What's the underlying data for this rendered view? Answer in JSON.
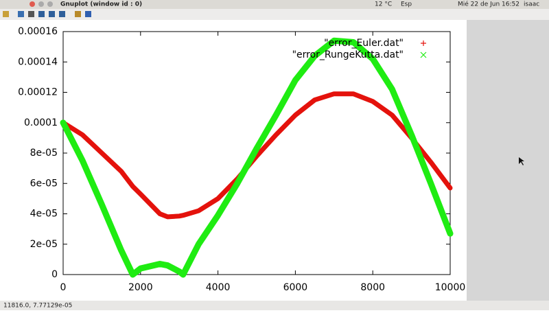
{
  "panel": {
    "window_title": "Gnuplot (window id : 0)",
    "weather": "12 °C",
    "keyboard": "Esp",
    "clock": "Mié 22 de Jun 16:52",
    "user": "isaac"
  },
  "status_bar": {
    "coordinates": "11816.0, 7.77129e-05"
  },
  "chart_data": {
    "type": "line",
    "x": [
      0,
      500,
      1000,
      1500,
      1800,
      2000,
      2500,
      2700,
      3000,
      3100,
      3500,
      4000,
      4500,
      5000,
      5500,
      6000,
      6500,
      7000,
      7500,
      8000,
      8500,
      9000,
      9500,
      10000
    ],
    "series": [
      {
        "name": "\"error_Euler.dat\"",
        "color": "#e4120c",
        "marker": "plus",
        "values": [
          0.0001,
          9.2e-05,
          8e-05,
          6.8e-05,
          5.8e-05,
          5.3e-05,
          4e-05,
          3.8e-05,
          3.85e-05,
          3.9e-05,
          4.2e-05,
          5e-05,
          6.3e-05,
          7.8e-05,
          9.2e-05,
          0.000105,
          0.000115,
          0.000119,
          0.000119,
          0.000114,
          0.000105,
          9e-05,
          7.4e-05,
          5.7e-05
        ]
      },
      {
        "name": "\"error_RungeKutta.dat\"",
        "color": "#1fec12",
        "marker": "cross",
        "values": [
          0.0001,
          7.5e-05,
          4.6e-05,
          1.6e-05,
          0,
          4e-06,
          7e-06,
          6e-06,
          2e-06,
          0,
          2e-05,
          3.9e-05,
          6e-05,
          8.3e-05,
          0.000105,
          0.000128,
          0.000144,
          0.000154,
          0.000153,
          0.000142,
          0.000122,
          9.2e-05,
          6e-05,
          2.7e-05
        ]
      }
    ],
    "xlim": [
      0,
      10000
    ],
    "xticks": [
      0,
      2000,
      4000,
      6000,
      8000,
      10000
    ],
    "ylim": [
      0,
      0.00016
    ],
    "yticks": [
      0,
      {
        "value": 2e-05,
        "label": "2e-05"
      },
      {
        "value": 4e-05,
        "label": "4e-05"
      },
      {
        "value": 6e-05,
        "label": "6e-05"
      },
      {
        "value": 8e-05,
        "label": "8e-05"
      },
      0.0001,
      0.00012,
      0.00014,
      0.00016
    ],
    "legend": "top-right"
  }
}
